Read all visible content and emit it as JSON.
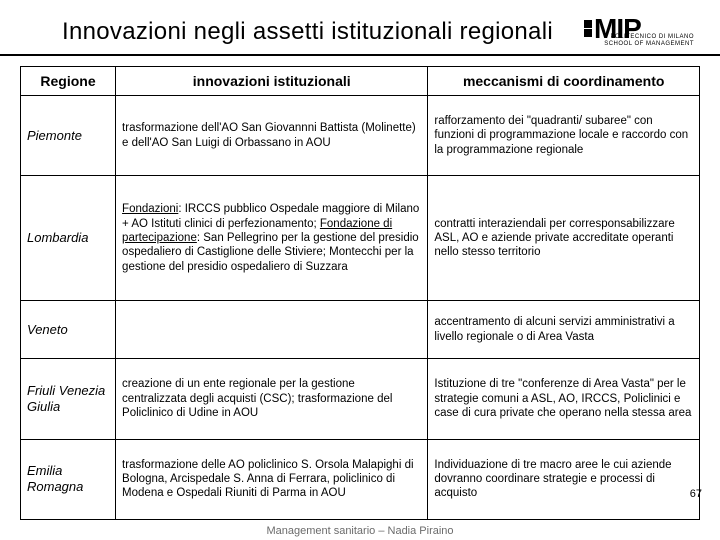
{
  "title": "Innovazioni negli assetti istituzionali regionali",
  "logo": {
    "text": "MIP",
    "sub1": "POLITECNICO DI MILANO",
    "sub2": "SCHOOL OF MANAGEMENT"
  },
  "table": {
    "headers": [
      "Regione",
      "innovazioni istituzionali",
      "meccanismi di coordinamento"
    ],
    "rows": [
      {
        "region": "Piemonte",
        "innov": "trasformazione dell'AO San Giovannni Battista (Molinette) e dell'AO San Luigi di Orbassano in AOU",
        "mech": "rafforzamento dei \"quadranti/ subaree\" con funzioni di programmazione locale e raccordo con la programmazione regionale"
      },
      {
        "region": "Lombardia",
        "innov_html": "<u>Fondazioni</u>: IRCCS pubblico Ospedale maggiore di Milano + AO Istituti clinici di perfezionamento; <u>Fondazione di partecipazione</u>: San Pellegrino per la gestione del presidio ospedaliero di Castiglione delle Stiviere; Montecchi per la gestione del presidio ospedaliero di Suzzara",
        "mech": "contratti interaziendali per corresponsabilizzare ASL, AO e aziende private accreditate operanti nello stesso territorio"
      },
      {
        "region": "Veneto",
        "innov": "",
        "mech": "accentramento di alcuni servizi amministrativi a livello regionale o di Area Vasta"
      },
      {
        "region": "Friuli Venezia Giulia",
        "innov": "creazione di un ente regionale per la gestione centralizzata degli acquisti (CSC); trasformazione del Policlinico di Udine in AOU",
        "mech": "Istituzione di tre \"conferenze di Area Vasta\" per le strategie comuni a ASL, AO, IRCCS, Policlinici e case di cura private che operano nella stessa area"
      },
      {
        "region": "Emilia Romagna",
        "innov": "trasformazione delle AO policlinico S. Orsola Malapighi di Bologna, Arcispedale S. Anna di Ferrara, policlinico di Modena e Ospedali Riuniti di Parma in AOU",
        "mech": "Individuazione di tre macro aree le cui aziende dovranno coordinare strategie e processi di acquisto"
      }
    ]
  },
  "page_number": "67",
  "footer": "Management sanitario – Nadia Piraino"
}
